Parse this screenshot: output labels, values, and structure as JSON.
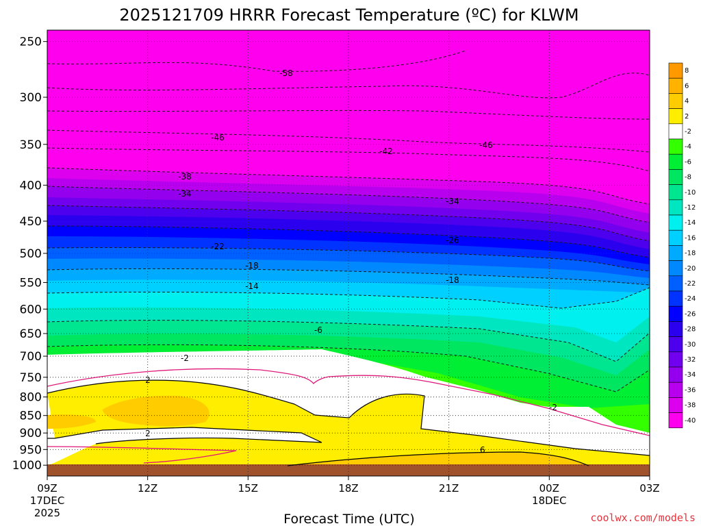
{
  "chart_data": {
    "type": "heatmap",
    "title": "2025121709 HRRR Forecast Temperature (ºC) for KLWM",
    "xlabel": "Forecast Time (UTC)",
    "ylabel": "",
    "x_ticks": [
      {
        "label": "09Z",
        "sub1": "17DEC",
        "sub2": "2025"
      },
      {
        "label": "12Z",
        "sub1": "",
        "sub2": ""
      },
      {
        "label": "15Z",
        "sub1": "",
        "sub2": ""
      },
      {
        "label": "18Z",
        "sub1": "",
        "sub2": ""
      },
      {
        "label": "21Z",
        "sub1": "",
        "sub2": ""
      },
      {
        "label": "00Z",
        "sub1": "18DEC",
        "sub2": ""
      },
      {
        "label": "03Z",
        "sub1": "",
        "sub2": ""
      }
    ],
    "y_ticks": [
      "250",
      "300",
      "350",
      "400",
      "450",
      "500",
      "550",
      "600",
      "650",
      "700",
      "750",
      "800",
      "850",
      "900",
      "950",
      "1000"
    ],
    "colorbar": {
      "labels": [
        "8",
        "6",
        "4",
        "2",
        "-2",
        "-4",
        "-6",
        "-8",
        "-10",
        "-12",
        "-14",
        "-16",
        "-18",
        "-20",
        "-22",
        "-24",
        "-26",
        "-28",
        "-30",
        "-32",
        "-34",
        "-36",
        "-38",
        "-40"
      ],
      "colors": [
        "#ff9900",
        "#ffb300",
        "#ffcc00",
        "#ffee00",
        "#ffffff",
        "#33ff00",
        "#00ee33",
        "#00e660",
        "#00e690",
        "#00e6c0",
        "#00f0f0",
        "#00d0ff",
        "#00aaff",
        "#0088ff",
        "#0060ff",
        "#0033ff",
        "#0000ff",
        "#2a00ee",
        "#4d00ee",
        "#7000ee",
        "#9400ee",
        "#b800ee",
        "#dc00ee",
        "#ff00ee"
      ]
    },
    "contour_labels": [
      "-58",
      "-46",
      "-42",
      "-46",
      "-38",
      "-34",
      "-34",
      "-26",
      "-22",
      "-18",
      "-18",
      "-14",
      "-6",
      "-2",
      "2",
      "2",
      "-2",
      "6"
    ],
    "credit": "coolwx.com/models"
  }
}
